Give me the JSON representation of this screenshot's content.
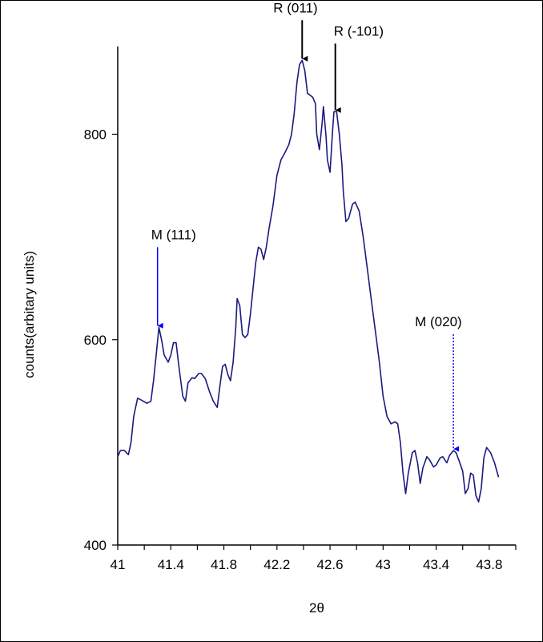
{
  "chart_data": {
    "type": "line",
    "title": "",
    "xlabel": "2θ",
    "ylabel": "counts(arbitary units)",
    "xlim": [
      41,
      44
    ],
    "ylim": [
      400,
      880
    ],
    "x_ticks": [
      "41",
      "41.4",
      "41.8",
      "42.2",
      "42.6",
      "43",
      "43.4",
      "43.8"
    ],
    "y_ticks": [
      "400",
      "600",
      "800"
    ],
    "grid": false,
    "line_color": "#1a1a80",
    "series": [
      {
        "points": [
          [
            41.0,
            486
          ],
          [
            41.02,
            492
          ],
          [
            41.05,
            492
          ],
          [
            41.08,
            488
          ],
          [
            41.1,
            500
          ],
          [
            41.12,
            525
          ],
          [
            41.15,
            543
          ],
          [
            41.18,
            541
          ],
          [
            41.22,
            538
          ],
          [
            41.25,
            540
          ],
          [
            41.27,
            560
          ],
          [
            41.29,
            585
          ],
          [
            41.31,
            612
          ],
          [
            41.33,
            600
          ],
          [
            41.35,
            585
          ],
          [
            41.38,
            578
          ],
          [
            41.4,
            585
          ],
          [
            41.42,
            597
          ],
          [
            41.44,
            597
          ],
          [
            41.46,
            575
          ],
          [
            41.49,
            545
          ],
          [
            41.51,
            540
          ],
          [
            41.53,
            558
          ],
          [
            41.56,
            563
          ],
          [
            41.58,
            562
          ],
          [
            41.61,
            567
          ],
          [
            41.63,
            567
          ],
          [
            41.66,
            562
          ],
          [
            41.69,
            550
          ],
          [
            41.72,
            540
          ],
          [
            41.75,
            534
          ],
          [
            41.77,
            555
          ],
          [
            41.79,
            574
          ],
          [
            41.81,
            576
          ],
          [
            41.83,
            566
          ],
          [
            41.85,
            560
          ],
          [
            41.87,
            578
          ],
          [
            41.89,
            612
          ],
          [
            41.9,
            640
          ],
          [
            41.92,
            633
          ],
          [
            41.94,
            605
          ],
          [
            41.96,
            602
          ],
          [
            41.98,
            605
          ],
          [
            42.0,
            625
          ],
          [
            42.02,
            650
          ],
          [
            42.04,
            675
          ],
          [
            42.06,
            690
          ],
          [
            42.08,
            688
          ],
          [
            42.1,
            678
          ],
          [
            42.12,
            690
          ],
          [
            42.14,
            708
          ],
          [
            42.17,
            730
          ],
          [
            42.2,
            760
          ],
          [
            42.23,
            775
          ],
          [
            42.26,
            782
          ],
          [
            42.29,
            790
          ],
          [
            42.31,
            800
          ],
          [
            42.33,
            820
          ],
          [
            42.35,
            850
          ],
          [
            42.37,
            868
          ],
          [
            42.39,
            872
          ],
          [
            42.41,
            862
          ],
          [
            42.43,
            840
          ],
          [
            42.45,
            838
          ],
          [
            42.47,
            836
          ],
          [
            42.49,
            830
          ],
          [
            42.5,
            800
          ],
          [
            42.52,
            785
          ],
          [
            42.54,
            810
          ],
          [
            42.55,
            827
          ],
          [
            42.57,
            798
          ],
          [
            42.58,
            775
          ],
          [
            42.6,
            763
          ],
          [
            42.62,
            805
          ],
          [
            42.63,
            822
          ],
          [
            42.65,
            822
          ],
          [
            42.67,
            800
          ],
          [
            42.69,
            770
          ],
          [
            42.7,
            745
          ],
          [
            42.72,
            715
          ],
          [
            42.74,
            718
          ],
          [
            42.77,
            732
          ],
          [
            42.79,
            734
          ],
          [
            42.82,
            725
          ],
          [
            42.85,
            700
          ],
          [
            42.88,
            670
          ],
          [
            42.91,
            640
          ],
          [
            42.94,
            610
          ],
          [
            42.97,
            580
          ],
          [
            43.0,
            545
          ],
          [
            43.03,
            525
          ],
          [
            43.06,
            518
          ],
          [
            43.09,
            520
          ],
          [
            43.11,
            518
          ],
          [
            43.13,
            500
          ],
          [
            43.15,
            470
          ],
          [
            43.17,
            450
          ],
          [
            43.19,
            470
          ],
          [
            43.22,
            490
          ],
          [
            43.24,
            492
          ],
          [
            43.26,
            480
          ],
          [
            43.28,
            460
          ],
          [
            43.3,
            475
          ],
          [
            43.33,
            486
          ],
          [
            43.35,
            483
          ],
          [
            43.38,
            476
          ],
          [
            43.4,
            478
          ],
          [
            43.43,
            485
          ],
          [
            43.45,
            486
          ],
          [
            43.48,
            480
          ],
          [
            43.5,
            487
          ],
          [
            43.53,
            492
          ],
          [
            43.55,
            490
          ],
          [
            43.57,
            483
          ],
          [
            43.6,
            472
          ],
          [
            43.62,
            450
          ],
          [
            43.64,
            455
          ],
          [
            43.66,
            470
          ],
          [
            43.68,
            468
          ],
          [
            43.7,
            448
          ],
          [
            43.72,
            442
          ],
          [
            43.74,
            455
          ],
          [
            43.76,
            485
          ],
          [
            43.78,
            495
          ],
          [
            43.81,
            490
          ],
          [
            43.84,
            480
          ],
          [
            43.87,
            466
          ]
        ]
      }
    ],
    "annotations": [
      {
        "text": "R (011)",
        "x": 42.39,
        "y": 872,
        "color": "#000000",
        "style": "solid"
      },
      {
        "text": "R (-101)",
        "x": 42.64,
        "y": 822,
        "color": "#000000",
        "style": "solid"
      },
      {
        "text": "M (111)",
        "x": 41.3,
        "y": 612,
        "color": "#0000ff",
        "style": "solid"
      },
      {
        "text": "M (020)",
        "x": 43.53,
        "y": 492,
        "color": "#0000ff",
        "style": "dotted"
      }
    ]
  }
}
